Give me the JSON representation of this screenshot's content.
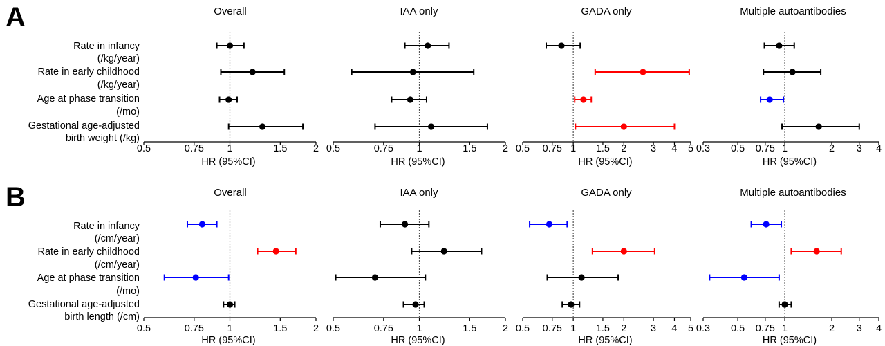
{
  "figure": {
    "panels": [
      {
        "letter": "A",
        "row_labels": [
          [
            "Rate in infancy",
            "(/kg/year)"
          ],
          [
            "Rate in early childhood",
            "(/kg/year)"
          ],
          [
            "Age at phase transition",
            "(/mo)"
          ],
          [
            "Gestational age-adjusted",
            "birth weight (/kg)"
          ]
        ]
      },
      {
        "letter": "B",
        "row_labels": [
          [
            "Rate in infancy",
            "(/cm/year)"
          ],
          [
            "Rate in early childhood",
            "(/cm/year)"
          ],
          [
            "Age at phase transition",
            "(/mo)"
          ],
          [
            "Gestational age-adjusted",
            "birth length (/cm)"
          ]
        ]
      }
    ],
    "colors": {
      "null_effect": "#000000",
      "increased": "#ff0000",
      "decreased": "#0000ff"
    }
  },
  "chart_data": [
    {
      "type": "forest",
      "panel": "A",
      "title": "Overall",
      "xlabel": "HR (95%CI)",
      "xscale": "log",
      "xlim": [
        0.5,
        2
      ],
      "xticks": [
        0.5,
        0.75,
        1,
        1.5,
        2
      ],
      "xtick_labels": [
        "0.5",
        "0.75",
        "1",
        "1.5",
        "2"
      ],
      "reference_line": 1,
      "points": [
        {
          "hr": 1.0,
          "lo": 0.9,
          "hi": 1.12,
          "color": "#000000"
        },
        {
          "hr": 1.2,
          "lo": 0.93,
          "hi": 1.55,
          "color": "#000000"
        },
        {
          "hr": 0.99,
          "lo": 0.92,
          "hi": 1.06,
          "color": "#000000"
        },
        {
          "hr": 1.3,
          "lo": 0.99,
          "hi": 1.8,
          "color": "#000000"
        }
      ]
    },
    {
      "type": "forest",
      "panel": "A",
      "title": "IAA only",
      "xlabel": "HR (95%CI)",
      "xscale": "log",
      "xlim": [
        0.5,
        2
      ],
      "xticks": [
        0.5,
        0.75,
        1,
        1.5,
        2
      ],
      "xtick_labels": [
        "0.5",
        "0.75",
        "1",
        "1.5",
        "2"
      ],
      "reference_line": 1,
      "points": [
        {
          "hr": 1.07,
          "lo": 0.89,
          "hi": 1.27,
          "color": "#000000"
        },
        {
          "hr": 0.95,
          "lo": 0.58,
          "hi": 1.55,
          "color": "#000000"
        },
        {
          "hr": 0.93,
          "lo": 0.8,
          "hi": 1.06,
          "color": "#000000"
        },
        {
          "hr": 1.1,
          "lo": 0.7,
          "hi": 1.73,
          "color": "#000000"
        }
      ]
    },
    {
      "type": "forest",
      "panel": "A",
      "title": "GADA only",
      "xlabel": "HR (95%CI)",
      "xscale": "log",
      "xlim": [
        0.5,
        5
      ],
      "xticks": [
        0.5,
        0.75,
        1,
        1.5,
        2,
        3,
        4,
        5
      ],
      "xtick_labels": [
        "0.5",
        "0.75",
        "1",
        "1.5",
        "2",
        "3",
        "4",
        "5"
      ],
      "reference_line": 1,
      "points": [
        {
          "hr": 0.85,
          "lo": 0.69,
          "hi": 1.1,
          "color": "#000000"
        },
        {
          "hr": 2.6,
          "lo": 1.35,
          "hi": 4.9,
          "color": "#ff0000"
        },
        {
          "hr": 1.15,
          "lo": 1.02,
          "hi": 1.28,
          "color": "#ff0000"
        },
        {
          "hr": 2.0,
          "lo": 1.03,
          "hi": 4.0,
          "color": "#ff0000"
        }
      ]
    },
    {
      "type": "forest",
      "panel": "A",
      "title": "Multiple autoantibodies",
      "xlabel": "HR (95%CI)",
      "xscale": "log",
      "xlim": [
        0.3,
        4
      ],
      "xticks": [
        0.3,
        0.5,
        0.75,
        1,
        2,
        3,
        4
      ],
      "xtick_labels": [
        "0.3",
        "0.5",
        "0.75",
        "1",
        "2",
        "3",
        "4"
      ],
      "reference_line": 1,
      "points": [
        {
          "hr": 0.92,
          "lo": 0.74,
          "hi": 1.15,
          "color": "#000000"
        },
        {
          "hr": 1.12,
          "lo": 0.73,
          "hi": 1.7,
          "color": "#000000"
        },
        {
          "hr": 0.8,
          "lo": 0.7,
          "hi": 0.98,
          "color": "#0000ff"
        },
        {
          "hr": 1.65,
          "lo": 0.96,
          "hi": 3.0,
          "color": "#000000"
        }
      ]
    },
    {
      "type": "forest",
      "panel": "B",
      "title": "Overall",
      "xlabel": "HR (95%CI)",
      "xscale": "log",
      "xlim": [
        0.5,
        2
      ],
      "xticks": [
        0.5,
        0.75,
        1,
        1.5,
        2
      ],
      "xtick_labels": [
        "0.5",
        "0.75",
        "1",
        "1.5",
        "2"
      ],
      "reference_line": 1,
      "points": [
        {
          "hr": 0.8,
          "lo": 0.71,
          "hi": 0.9,
          "color": "#0000ff"
        },
        {
          "hr": 1.45,
          "lo": 1.25,
          "hi": 1.7,
          "color": "#ff0000"
        },
        {
          "hr": 0.76,
          "lo": 0.59,
          "hi": 0.99,
          "color": "#0000ff"
        },
        {
          "hr": 1.0,
          "lo": 0.95,
          "hi": 1.04,
          "color": "#000000"
        }
      ]
    },
    {
      "type": "forest",
      "panel": "B",
      "title": "IAA only",
      "xlabel": "HR (95%CI)",
      "xscale": "log",
      "xlim": [
        0.5,
        2
      ],
      "xticks": [
        0.5,
        0.75,
        1,
        1.5,
        2
      ],
      "xtick_labels": [
        "0.5",
        "0.75",
        "1",
        "1.5",
        "2"
      ],
      "reference_line": 1,
      "points": [
        {
          "hr": 0.89,
          "lo": 0.73,
          "hi": 1.08,
          "color": "#000000"
        },
        {
          "hr": 1.22,
          "lo": 0.94,
          "hi": 1.65,
          "color": "#000000"
        },
        {
          "hr": 0.7,
          "lo": 0.51,
          "hi": 1.05,
          "color": "#000000"
        },
        {
          "hr": 0.97,
          "lo": 0.88,
          "hi": 1.04,
          "color": "#000000"
        }
      ]
    },
    {
      "type": "forest",
      "panel": "B",
      "title": "GADA only",
      "xlabel": "HR (95%CI)",
      "xscale": "log",
      "xlim": [
        0.5,
        5
      ],
      "xticks": [
        0.5,
        0.75,
        1,
        1.5,
        2,
        3,
        4,
        5
      ],
      "xtick_labels": [
        "0.5",
        "0.75",
        "1",
        "1.5",
        "2",
        "3",
        "4",
        "5"
      ],
      "reference_line": 1,
      "points": [
        {
          "hr": 0.72,
          "lo": 0.55,
          "hi": 0.92,
          "color": "#0000ff"
        },
        {
          "hr": 2.0,
          "lo": 1.3,
          "hi": 3.05,
          "color": "#ff0000"
        },
        {
          "hr": 1.12,
          "lo": 0.7,
          "hi": 1.85,
          "color": "#000000"
        },
        {
          "hr": 0.97,
          "lo": 0.86,
          "hi": 1.09,
          "color": "#000000"
        }
      ]
    },
    {
      "type": "forest",
      "panel": "B",
      "title": "Multiple autoantibodies",
      "xlabel": "HR (95%CI)",
      "xscale": "log",
      "xlim": [
        0.3,
        4
      ],
      "xticks": [
        0.3,
        0.5,
        0.75,
        1,
        2,
        3,
        4
      ],
      "xtick_labels": [
        "0.3",
        "0.5",
        "0.75",
        "1",
        "2",
        "3",
        "4"
      ],
      "reference_line": 1,
      "points": [
        {
          "hr": 0.76,
          "lo": 0.61,
          "hi": 0.95,
          "color": "#0000ff"
        },
        {
          "hr": 1.6,
          "lo": 1.1,
          "hi": 2.3,
          "color": "#ff0000"
        },
        {
          "hr": 0.55,
          "lo": 0.33,
          "hi": 0.92,
          "color": "#0000ff"
        },
        {
          "hr": 1.0,
          "lo": 0.92,
          "hi": 1.1,
          "color": "#000000"
        }
      ]
    }
  ]
}
